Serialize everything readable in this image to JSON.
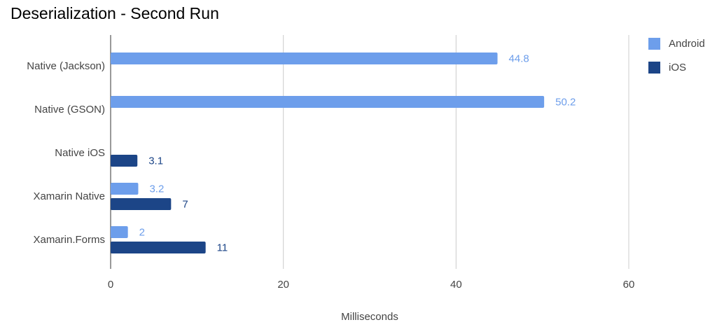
{
  "chart_data": {
    "type": "bar",
    "orientation": "horizontal",
    "title": "Deserialization - Second Run",
    "x_label": "Milliseconds",
    "categories": [
      "Native (Jackson)",
      "Native (GSON)",
      "Native iOS",
      "Xamarin Native",
      "Xamarin.Forms"
    ],
    "series": [
      {
        "name": "Android",
        "color": "#6d9eeb",
        "values": [
          44.8,
          50.2,
          null,
          3.2,
          2
        ]
      },
      {
        "name": "iOS",
        "color": "#1c4587",
        "values": [
          null,
          null,
          3.1,
          7,
          11
        ]
      }
    ],
    "xlim": [
      0,
      60
    ],
    "xticks": [
      0,
      20,
      40,
      60
    ],
    "grid": true,
    "legend": "right",
    "data_labels": true
  }
}
